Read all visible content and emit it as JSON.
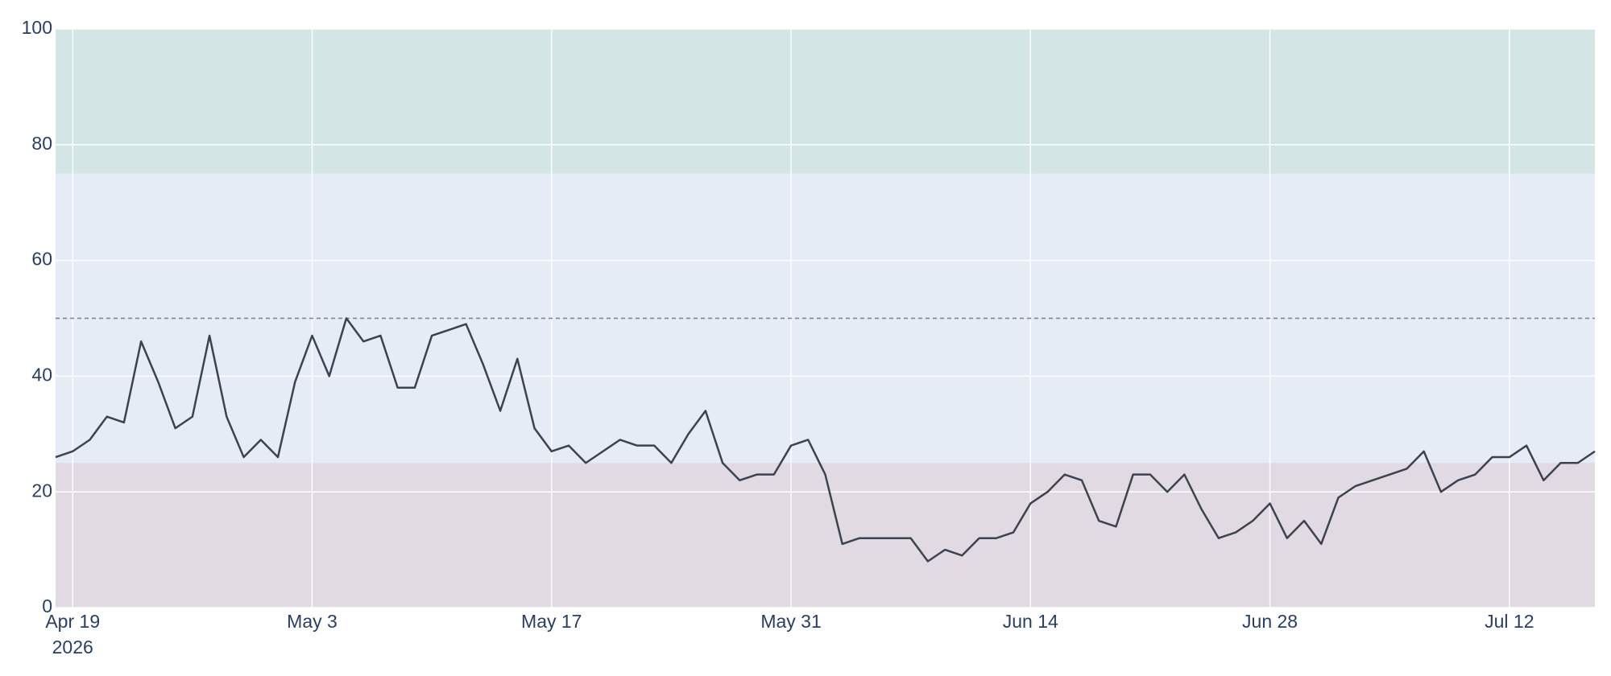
{
  "chart_data": {
    "type": "line",
    "x": [
      "2026-04-18",
      "2026-04-19",
      "2026-04-20",
      "2026-04-21",
      "2026-04-22",
      "2026-04-23",
      "2026-04-24",
      "2026-04-25",
      "2026-04-26",
      "2026-04-27",
      "2026-04-28",
      "2026-04-29",
      "2026-04-30",
      "2026-05-01",
      "2026-05-02",
      "2026-05-03",
      "2026-05-04",
      "2026-05-05",
      "2026-05-06",
      "2026-05-07",
      "2026-05-08",
      "2026-05-09",
      "2026-05-10",
      "2026-05-11",
      "2026-05-12",
      "2026-05-13",
      "2026-05-14",
      "2026-05-15",
      "2026-05-16",
      "2026-05-17",
      "2026-05-18",
      "2026-05-19",
      "2026-05-20",
      "2026-05-21",
      "2026-05-22",
      "2026-05-23",
      "2026-05-24",
      "2026-05-25",
      "2026-05-26",
      "2026-05-27",
      "2026-05-28",
      "2026-05-29",
      "2026-05-30",
      "2026-05-31",
      "2026-06-01",
      "2026-06-02",
      "2026-06-03",
      "2026-06-04",
      "2026-06-05",
      "2026-06-06",
      "2026-06-07",
      "2026-06-08",
      "2026-06-09",
      "2026-06-10",
      "2026-06-11",
      "2026-06-12",
      "2026-06-13",
      "2026-06-14",
      "2026-06-15",
      "2026-06-16",
      "2026-06-17",
      "2026-06-18",
      "2026-06-19",
      "2026-06-20",
      "2026-06-21",
      "2026-06-22",
      "2026-06-23",
      "2026-06-24",
      "2026-06-25",
      "2026-06-26",
      "2026-06-27",
      "2026-06-28",
      "2026-06-29",
      "2026-06-30",
      "2026-07-01",
      "2026-07-02",
      "2026-07-03",
      "2026-07-04",
      "2026-07-05",
      "2026-07-06",
      "2026-07-07",
      "2026-07-08",
      "2026-07-09",
      "2026-07-10",
      "2026-07-11",
      "2026-07-12",
      "2026-07-13",
      "2026-07-14",
      "2026-07-15",
      "2026-07-16",
      "2026-07-17"
    ],
    "series": [
      {
        "color": "#3d4250",
        "values": [
          26,
          27,
          29,
          33,
          32,
          46,
          39,
          31,
          33,
          47,
          33,
          26,
          29,
          26,
          39,
          47,
          40,
          50,
          46,
          47,
          38,
          38,
          47,
          48,
          49,
          42,
          34,
          43,
          31,
          27,
          28,
          25,
          27,
          29,
          28,
          28,
          25,
          30,
          34,
          25,
          22,
          23,
          23,
          28,
          29,
          23,
          11,
          12,
          12,
          12,
          12,
          8,
          10,
          9,
          12,
          12,
          13,
          18,
          20,
          23,
          22,
          15,
          14,
          23,
          23,
          20,
          23,
          17,
          12,
          13,
          15,
          18,
          12,
          15,
          11,
          19,
          21,
          22,
          23,
          24,
          27,
          20,
          22,
          23,
          26,
          26,
          28,
          22,
          25,
          25,
          27
        ]
      }
    ],
    "xlim": [
      "2026-04-18",
      "2026-07-17"
    ],
    "xticks": [
      {
        "value": "2026-04-19",
        "label": "Apr 19"
      },
      {
        "value": "2026-05-03",
        "label": "May 3"
      },
      {
        "value": "2026-05-17",
        "label": "May 17"
      },
      {
        "value": "2026-05-31",
        "label": "May 31"
      },
      {
        "value": "2026-06-14",
        "label": "Jun 14"
      },
      {
        "value": "2026-06-28",
        "label": "Jun 28"
      },
      {
        "value": "2026-07-12",
        "label": "Jul 12"
      }
    ],
    "x_year_label": "2026",
    "ylim": [
      0,
      100
    ],
    "yticks": [
      0,
      20,
      40,
      60,
      80,
      100
    ],
    "grid": true,
    "bands": [
      {
        "range": [
          75,
          100
        ],
        "color": "#d3e5e5"
      },
      {
        "range": [
          25,
          75
        ],
        "color": "#e5ecf6"
      },
      {
        "range": [
          0,
          25
        ],
        "color": "#e2dae3"
      }
    ],
    "reference_line": 50
  }
}
